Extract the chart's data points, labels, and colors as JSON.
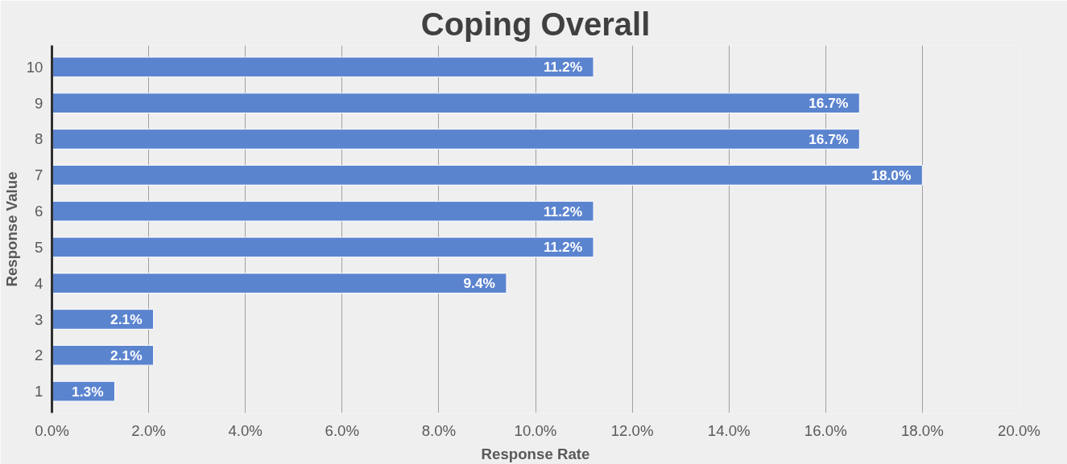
{
  "chart_data": {
    "type": "bar",
    "orientation": "horizontal",
    "title": "Coping Overall",
    "xlabel": "Response Rate",
    "ylabel": "Response Value",
    "categories": [
      "10",
      "9",
      "8",
      "7",
      "6",
      "5",
      "4",
      "3",
      "2",
      "1"
    ],
    "values": [
      11.2,
      16.7,
      16.7,
      18.0,
      11.2,
      11.2,
      9.4,
      2.1,
      2.1,
      1.3
    ],
    "value_labels": [
      "11.2%",
      "16.7%",
      "16.7%",
      "18.0%",
      "11.2%",
      "11.2%",
      "9.4%",
      "2.1%",
      "2.1%",
      "1.3%"
    ],
    "color": "#5b84cf",
    "xlim": [
      0,
      20
    ],
    "xticks": [
      {
        "value": 0,
        "label": "0.0%"
      },
      {
        "value": 2,
        "label": "2.0%"
      },
      {
        "value": 4,
        "label": "4.0%"
      },
      {
        "value": 6,
        "label": "6.0%"
      },
      {
        "value": 8,
        "label": "8.0%"
      },
      {
        "value": 10,
        "label": "10.0%"
      },
      {
        "value": 12,
        "label": "12.0%"
      },
      {
        "value": 14,
        "label": "14.0%"
      },
      {
        "value": 16,
        "label": "16.0%"
      },
      {
        "value": 18,
        "label": "18.0%"
      },
      {
        "value": 20,
        "label": "20.0%"
      }
    ],
    "grid": "x"
  }
}
